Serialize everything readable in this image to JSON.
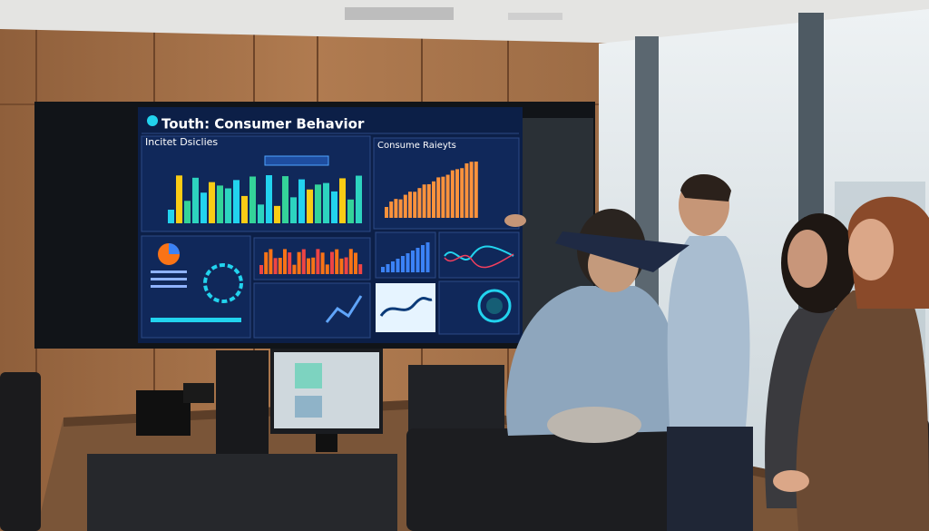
{
  "screen": {
    "title": "Touth: Consumer Behavior",
    "panels": [
      "Incitet Dsiclies",
      "Consume Raieyts"
    ]
  }
}
